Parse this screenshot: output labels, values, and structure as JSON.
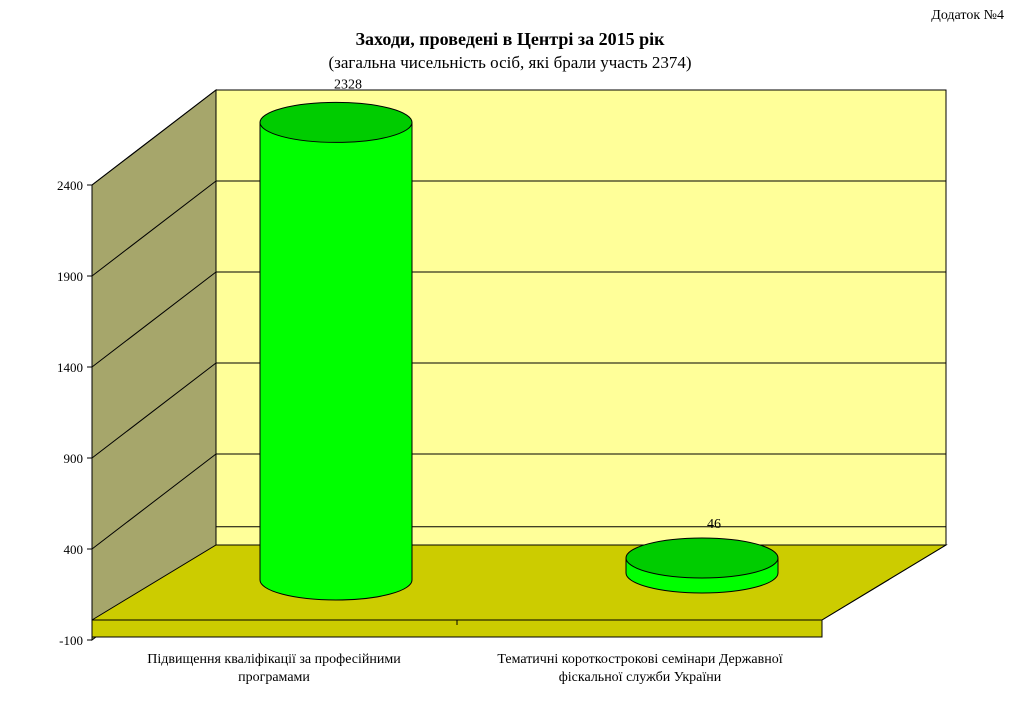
{
  "appendix": "Додаток №4",
  "chart_data": {
    "type": "bar",
    "title": "Заходи, проведені в Центрі за 2015 рік",
    "subtitle": "(загальна чисельність осіб, які брали участь 2374)",
    "categories": [
      [
        "Підвищення кваліфікації за професійними",
        "програмами"
      ],
      [
        "Тематичні короткострокові семінари Державної",
        "фіскальної служби України"
      ]
    ],
    "values": [
      2328,
      46
    ],
    "y_ticks": [
      -100,
      400,
      900,
      1400,
      1900,
      2400
    ],
    "ylim": [
      -100,
      2400
    ],
    "grid": true,
    "legend": false,
    "colors": {
      "bar": "#00ff00",
      "bar_top": "#00cc00",
      "back_wall": "#ffff99",
      "side_wall": "#a6a66b",
      "floor": "#cccc00"
    }
  }
}
